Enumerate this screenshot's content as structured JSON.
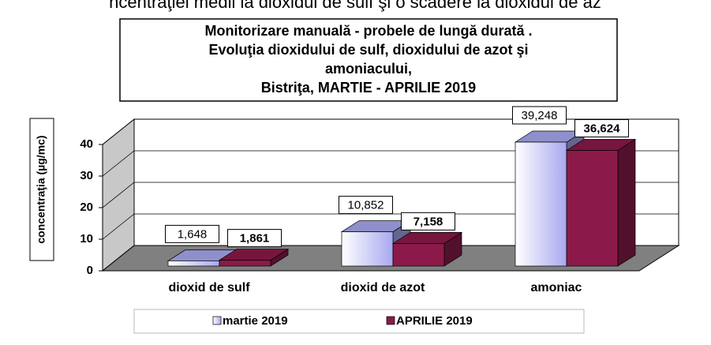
{
  "caption": "ncentraţiei medii la dioxidul de sulf şi o scădere la dioxidul de az",
  "chart_data": {
    "type": "bar3d",
    "title": [
      "Monitorizare manuală - probele de lungă durată .",
      "Evoluţia dioxidului de sulf, dioxidului de azot şi",
      "amoniacului,",
      "Bistriţa,  MARTIE - APRILIE  2019"
    ],
    "y_label": "concentraţia (µg/mc)",
    "categories": [
      "dioxid de sulf",
      "dioxid de azot",
      "amoniac"
    ],
    "series": [
      {
        "name": "martie 2019",
        "color": "#a8a8f0",
        "values": [
          1.648,
          10.852,
          39.248
        ],
        "value_labels": [
          "1,648",
          "10,852",
          "39,248"
        ]
      },
      {
        "name": "APRILIE 2019",
        "color": "#8b1a4a",
        "values": [
          1.861,
          7.158,
          36.624
        ],
        "value_labels": [
          "1,861",
          "7,158",
          "36,624"
        ]
      }
    ],
    "ylim": [
      0,
      40
    ],
    "yticks": [
      0,
      10,
      20,
      30,
      40
    ],
    "grid": true,
    "legend": "bottom"
  }
}
